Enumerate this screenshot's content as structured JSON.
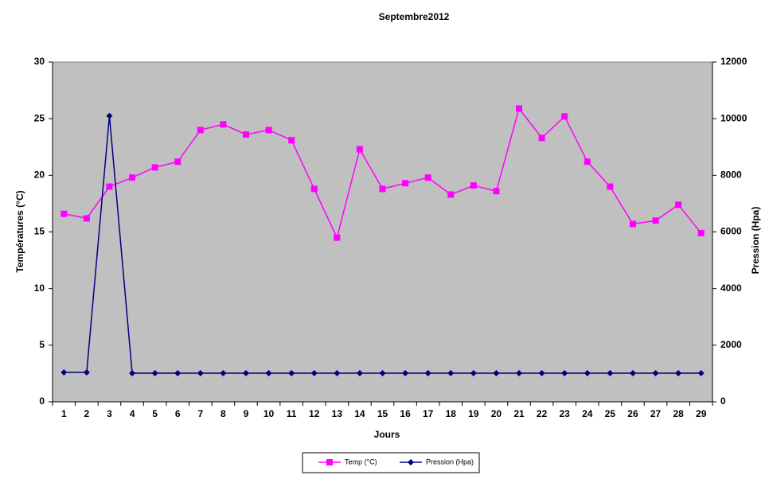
{
  "chart_data": {
    "type": "line",
    "title": "Septembre2012",
    "x_label": "Jours",
    "y_label": "Températures (°C)",
    "y2_label": "Pression (Hpa)",
    "categories": [
      "1",
      "2",
      "3",
      "4",
      "5",
      "6",
      "7",
      "8",
      "9",
      "10",
      "11",
      "12",
      "13",
      "14",
      "15",
      "16",
      "17",
      "18",
      "19",
      "20",
      "21",
      "22",
      "23",
      "24",
      "25",
      "26",
      "27",
      "28",
      "29"
    ],
    "series": [
      {
        "name": "Temp (°C)",
        "color": "#ff00ff",
        "marker": "square",
        "values": [
          16.6,
          16.2,
          19.0,
          19.8,
          20.7,
          21.2,
          24.0,
          24.5,
          23.6,
          24.0,
          23.1,
          18.8,
          14.5,
          22.3,
          18.8,
          19.3,
          19.8,
          18.3,
          19.1,
          18.6,
          25.9,
          23.3,
          25.2,
          21.2,
          19.0,
          15.7,
          16.0,
          17.4,
          14.9
        ]
      },
      {
        "name": "Pression (Hpa)",
        "color": "#000080",
        "marker": "diamond",
        "axis": "y2",
        "values": [
          1040,
          1040,
          10100,
          1010,
          1010,
          1010,
          1010,
          1010,
          1010,
          1010,
          1010,
          1010,
          1010,
          1010,
          1010,
          1010,
          1010,
          1010,
          1010,
          1010,
          1010,
          1010,
          1010,
          1010,
          1010,
          1010,
          1010,
          1010,
          1010
        ]
      }
    ],
    "ylim": [
      0,
      30
    ],
    "yticks": [
      0,
      5,
      10,
      15,
      20,
      25,
      30
    ],
    "y2lim": [
      0,
      12000
    ],
    "y2ticks": [
      0,
      2000,
      4000,
      6000,
      8000,
      10000,
      12000
    ],
    "grid": false,
    "legend": "bottom"
  }
}
